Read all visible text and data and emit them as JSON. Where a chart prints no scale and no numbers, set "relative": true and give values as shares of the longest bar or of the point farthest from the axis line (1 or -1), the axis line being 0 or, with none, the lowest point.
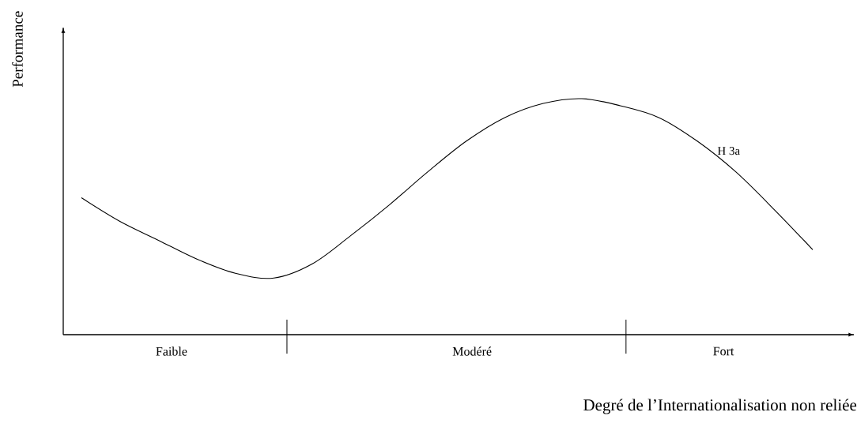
{
  "chart_data": {
    "type": "line",
    "relative": true,
    "xlabel": "Degré de l’Internationalisation non reliée",
    "ylabel": "Performance",
    "categories": [
      null,
      null,
      null,
      null,
      null,
      null,
      null,
      null,
      null,
      null,
      null,
      null,
      null,
      null,
      null,
      null,
      null,
      null,
      null,
      null
    ],
    "series": [
      {
        "name": "H 3a",
        "color": "#000000",
        "values": [
          0.58,
          0.48,
          0.4,
          0.32,
          0.26,
          0.24,
          0.3,
          0.42,
          0.55,
          0.69,
          0.82,
          0.92,
          0.98,
          1,
          0.97,
          0.92,
          0.82,
          0.69,
          0.53,
          0.36
        ]
      }
    ],
    "annotations": [
      "Faible",
      "Modéré",
      "Fort"
    ]
  }
}
